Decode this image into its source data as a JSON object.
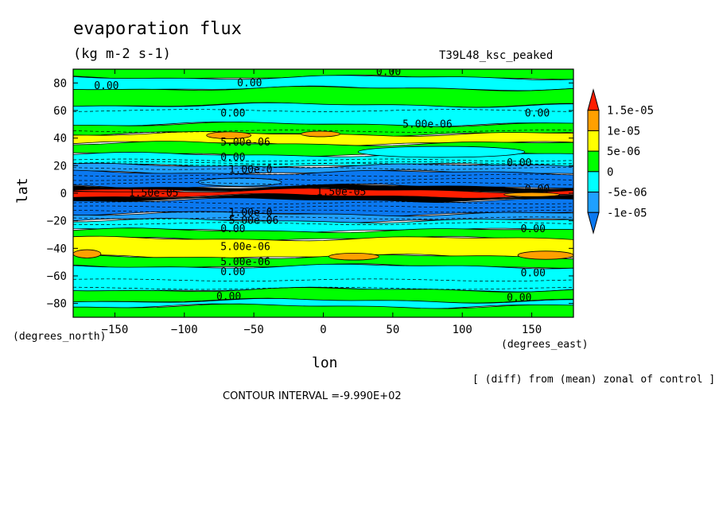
{
  "header": {
    "title": "evaporation flux",
    "units": "(kg m-2 s-1)",
    "experiment": "T39L48_ksc_peaked"
  },
  "footer": {
    "diff_note": "[ (diff) from (mean) zonal of control ]",
    "contour_interval": "CONTOUR INTERVAL =-9.990E+02"
  },
  "colors": {
    "deep_blue": "#0a78f0",
    "blue": "#1fa0ff",
    "cyan": "#00ffff",
    "green": "#00ff00",
    "yellow": "#ffff00",
    "orange": "#ffa000",
    "red": "#ff1e00",
    "black": "#000000"
  },
  "chart_data": {
    "type": "heatmap",
    "title": "evaporation flux",
    "subtitle": "(kg m-2 s-1)",
    "xlabel": "lon",
    "ylabel": "lat",
    "x_unit_label": "(degrees_east)",
    "y_unit_label": "(degrees_north)",
    "xlim": [
      -180,
      180
    ],
    "ylim": [
      -90,
      90
    ],
    "x_ticks": [
      -150,
      -100,
      -50,
      0,
      50,
      100,
      150
    ],
    "y_ticks": [
      -80,
      -60,
      -40,
      -20,
      0,
      20,
      40,
      60,
      80
    ],
    "x_tick_labels": [
      "−150",
      "−100",
      "−50",
      "0",
      "50",
      "100",
      "150"
    ],
    "y_tick_labels": [
      "−80",
      "−60",
      "−40",
      "−20",
      "0",
      "20",
      "40",
      "60",
      "80"
    ],
    "colorbar": {
      "labels": [
        "1.5e-05",
        "1e-05",
        "5e-06",
        "0",
        "-5e-06",
        "-1e-05"
      ],
      "colors": [
        "#ff1e00",
        "#ffa000",
        "#ffff00",
        "#00ff00",
        "#00ffff",
        "#1fa0ff",
        "#0a78f0"
      ]
    },
    "bands": [
      {
        "lat_from": 90,
        "lat_to": 84,
        "level": "green"
      },
      {
        "lat_from": 84,
        "lat_to": 76,
        "level": "cyan"
      },
      {
        "lat_from": 76,
        "lat_to": 64,
        "level": "green"
      },
      {
        "lat_from": 64,
        "lat_to": 50,
        "level": "cyan"
      },
      {
        "lat_from": 50,
        "lat_to": 43,
        "level": "green"
      },
      {
        "lat_from": 43,
        "lat_to": 36,
        "level": "yellow"
      },
      {
        "lat_from": 36,
        "lat_to": 28,
        "level": "green"
      },
      {
        "lat_from": 28,
        "lat_to": 20,
        "level": "cyan"
      },
      {
        "lat_from": 20,
        "lat_to": 15,
        "level": "blue"
      },
      {
        "lat_from": 15,
        "lat_to": 5,
        "level": "deep_blue"
      },
      {
        "lat_from": 5,
        "lat_to": 2,
        "level": "black"
      },
      {
        "lat_from": 2,
        "lat_to": -2,
        "level": "red"
      },
      {
        "lat_from": -2,
        "lat_to": -5,
        "level": "black"
      },
      {
        "lat_from": -5,
        "lat_to": -15,
        "level": "deep_blue"
      },
      {
        "lat_from": -15,
        "lat_to": -20,
        "level": "blue"
      },
      {
        "lat_from": -20,
        "lat_to": -27,
        "level": "cyan"
      },
      {
        "lat_from": -27,
        "lat_to": -33,
        "level": "green"
      },
      {
        "lat_from": -33,
        "lat_to": -46,
        "level": "yellow"
      },
      {
        "lat_from": -46,
        "lat_to": -53,
        "level": "green"
      },
      {
        "lat_from": -53,
        "lat_to": -70,
        "level": "cyan"
      },
      {
        "lat_from": -70,
        "lat_to": -78,
        "level": "green"
      },
      {
        "lat_from": -78,
        "lat_to": -82,
        "level": "cyan"
      },
      {
        "lat_from": -82,
        "lat_to": -90,
        "level": "green"
      }
    ],
    "patches": [
      {
        "lon": -68,
        "lat": 42,
        "w": 16,
        "h": 5,
        "level": "orange"
      },
      {
        "lon": -2,
        "lat": 43,
        "w": 14,
        "h": 4,
        "level": "orange"
      },
      {
        "lon": -170,
        "lat": -44,
        "w": 10,
        "h": 6,
        "level": "orange"
      },
      {
        "lon": 22,
        "lat": -46,
        "w": 18,
        "h": 5,
        "level": "orange"
      },
      {
        "lon": 160,
        "lat": -45,
        "w": 20,
        "h": 6,
        "level": "orange"
      },
      {
        "lon": 85,
        "lat": 30,
        "w": 60,
        "h": 8,
        "level": "cyan"
      },
      {
        "lon": -60,
        "lat": 8,
        "w": 30,
        "h": 6,
        "level": "blue"
      },
      {
        "lon": 150,
        "lat": -1,
        "w": 20,
        "h": 3,
        "level": "orange"
      },
      {
        "lon": -140,
        "lat": 2,
        "w": 40,
        "h": 2,
        "level": "red"
      }
    ],
    "contour_labels": [
      {
        "text": "0.00",
        "lon": -165,
        "lat": 78
      },
      {
        "text": "0.00",
        "lon": -62,
        "lat": 80
      },
      {
        "text": "0.00",
        "lon": 38,
        "lat": 88
      },
      {
        "text": "0.00",
        "lon": -74,
        "lat": 58
      },
      {
        "text": "0.00",
        "lon": 145,
        "lat": 58
      },
      {
        "text": "5.00e-06",
        "lon": 57,
        "lat": 50
      },
      {
        "text": "5.00e-06",
        "lon": -74,
        "lat": 37
      },
      {
        "text": "0.00",
        "lon": -74,
        "lat": 26
      },
      {
        "text": "0.00",
        "lon": 132,
        "lat": 22
      },
      {
        "text": "1.00e-0",
        "lon": -68,
        "lat": 17
      },
      {
        "text": "1.50e-05",
        "lon": -140,
        "lat": 0
      },
      {
        "text": "1.50e-05",
        "lon": -5,
        "lat": 1
      },
      {
        "text": "0.00",
        "lon": 145,
        "lat": 3
      },
      {
        "text": "1.00e-0",
        "lon": -68,
        "lat": -14
      },
      {
        "text": "5.00e-06",
        "lon": -68,
        "lat": -20
      },
      {
        "text": "0.00",
        "lon": -74,
        "lat": -26
      },
      {
        "text": "0.00",
        "lon": 142,
        "lat": -26
      },
      {
        "text": "5.00e-06",
        "lon": -74,
        "lat": -39
      },
      {
        "text": "5.00e-06",
        "lon": -74,
        "lat": -50
      },
      {
        "text": "0.00",
        "lon": -74,
        "lat": -57
      },
      {
        "text": "0.00",
        "lon": 142,
        "lat": -58
      },
      {
        "text": "0.00",
        "lon": -77,
        "lat": -75
      },
      {
        "text": "0.00",
        "lon": 132,
        "lat": -76
      }
    ]
  }
}
